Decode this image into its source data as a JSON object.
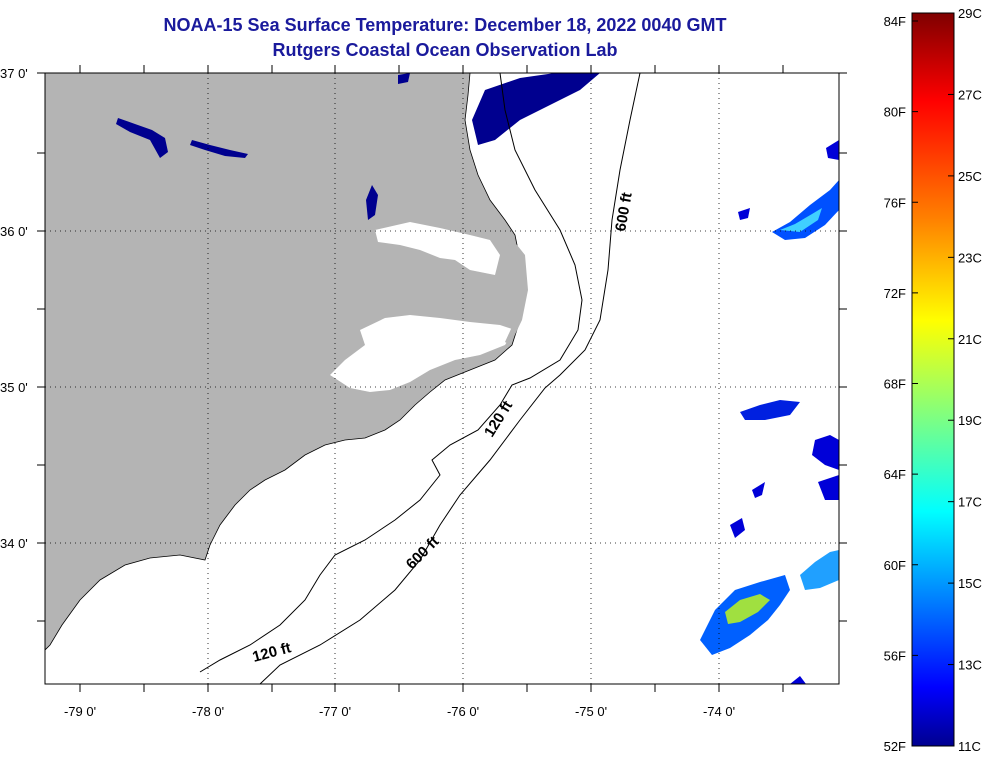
{
  "title_line1": "NOAA-15 Sea Surface Temperature:  December 18, 2022 0040 GMT",
  "title_line2": "Rutgers Coastal Ocean Observation Lab",
  "map": {
    "lat_labels": [
      "37 0'",
      "36 0'",
      "35 0'",
      "34 0'"
    ],
    "lon_labels": [
      "-79 0'",
      "-78 0'",
      "-77 0'",
      "-76 0'",
      "-75 0'",
      "-74 0'"
    ],
    "contours": [
      {
        "label": "600 ft",
        "depth_ft": 600
      },
      {
        "label": "120 ft",
        "depth_ft": 120
      },
      {
        "label": "600 ft",
        "depth_ft": 600
      },
      {
        "label": "120 ft",
        "depth_ft": 120
      }
    ],
    "land_color": "#b4b4b4",
    "no_data_color": "#ffffff"
  },
  "colorbar": {
    "fahrenheit": [
      "84F",
      "80F",
      "76F",
      "72F",
      "68F",
      "64F",
      "60F",
      "56F",
      "52F"
    ],
    "celsius": [
      "29C",
      "27C",
      "25C",
      "23C",
      "21C",
      "19C",
      "17C",
      "15C",
      "13C",
      "11C"
    ],
    "colors": [
      "#7f0000",
      "#ff0000",
      "#ff8000",
      "#ffff00",
      "#80ff80",
      "#00ffff",
      "#0080ff",
      "#0000ff",
      "#00008f"
    ]
  }
}
